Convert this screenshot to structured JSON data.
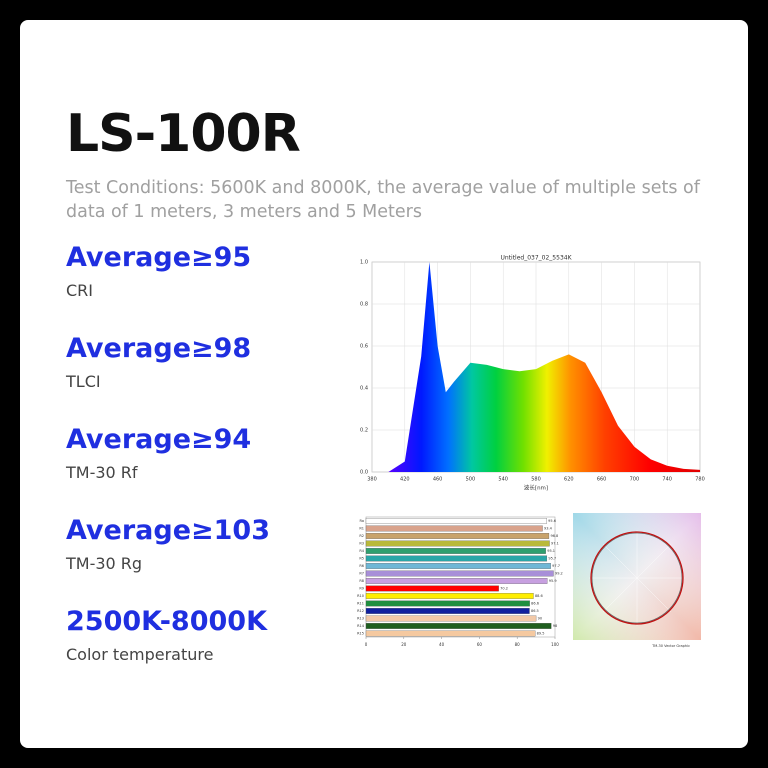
{
  "title": "LS-100R",
  "subtitle": "Test Conditions: 5600K and 8000K, the average value of multiple sets of data of 1 meters, 3 meters and 5 Meters",
  "specs": [
    {
      "value": "Average≥95",
      "label": "CRI"
    },
    {
      "value": "Average≥98",
      "label": "TLCI"
    },
    {
      "value": "Average≥94",
      "label": "TM-30 Rf"
    },
    {
      "value": "Average≥103",
      "label": "TM-30 Rg"
    },
    {
      "value": "2500K-8000K",
      "label": "Color temperature"
    }
  ],
  "spectrum_chart": {
    "type": "area",
    "title": "Untitled_037_02_5534K",
    "x_label": "波长[nm]",
    "x": [
      380,
      400,
      420,
      440,
      450,
      460,
      470,
      480,
      500,
      520,
      540,
      560,
      580,
      600,
      620,
      640,
      660,
      680,
      700,
      720,
      740,
      760,
      780
    ],
    "values": [
      0,
      0,
      0.05,
      0.55,
      1.0,
      0.6,
      0.38,
      0.43,
      0.52,
      0.51,
      0.49,
      0.48,
      0.49,
      0.53,
      0.56,
      0.52,
      0.38,
      0.22,
      0.12,
      0.06,
      0.03,
      0.015,
      0.01
    ],
    "xlim": [
      380,
      780
    ],
    "ylim": [
      0,
      1
    ],
    "xticks": [
      380,
      420,
      460,
      500,
      540,
      580,
      620,
      660,
      700,
      740,
      780
    ],
    "yticks": [
      {
        "value": 0,
        "label": "0.0"
      },
      {
        "value": 0.2,
        "label": "0.2"
      },
      {
        "value": 0.4,
        "label": "0.4"
      },
      {
        "value": 0.6,
        "label": "0.6"
      },
      {
        "value": 0.8,
        "label": "0.8"
      },
      {
        "value": 1,
        "label": "1.0"
      }
    ],
    "grid": true
  },
  "cri_chart": {
    "type": "bar",
    "categories": [
      "Ra",
      "R1",
      "R2",
      "R3",
      "R4",
      "R5",
      "R6",
      "R7",
      "R8",
      "R9",
      "R10",
      "R11",
      "R12",
      "R13",
      "R14",
      "R15"
    ],
    "values": [
      95.6,
      93.4,
      96.8,
      97.1,
      95.1,
      95.7,
      97.7,
      99.2,
      95.9,
      70.2,
      88.6,
      86.6,
      86.5,
      90.0,
      98.0,
      89.5
    ],
    "colors": [
      "#ffffff",
      "#d9a38c",
      "#c9a36b",
      "#b9b93a",
      "#2f9f6f",
      "#2aa6a8",
      "#6fb7d6",
      "#a88fd8",
      "#c7a0e0",
      "#ff0000",
      "#ffee00",
      "#1f8f3f",
      "#10209f",
      "#f2c9a8",
      "#1f5f1f",
      "#f5c9a0"
    ],
    "xlim": [
      0,
      100
    ],
    "xticks": [
      0,
      20,
      40,
      60,
      80,
      100
    ]
  },
  "vector_graphic": {
    "label": "TM-30 Vector Graphic"
  }
}
